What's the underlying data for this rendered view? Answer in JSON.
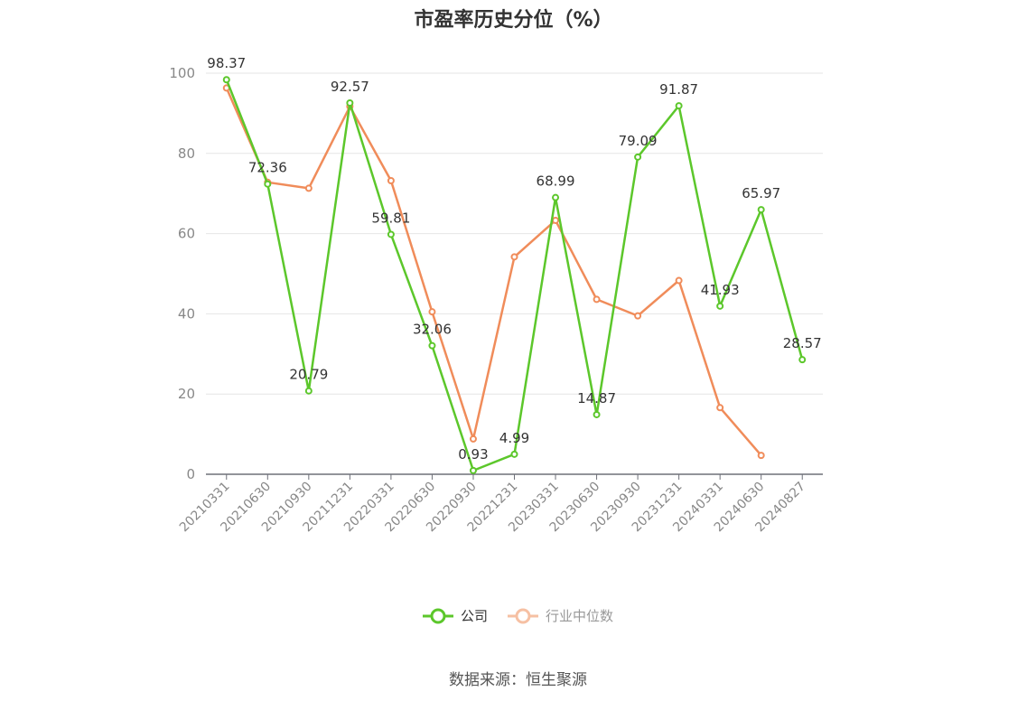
{
  "chart_data": {
    "type": "line",
    "title": "市盈率历史分位（%）",
    "categories": [
      "20210331",
      "20210630",
      "20210930",
      "20211231",
      "20220331",
      "20220630",
      "20220930",
      "20221231",
      "20230331",
      "20230630",
      "20230930",
      "20231231",
      "20240331",
      "20240630",
      "20240827"
    ],
    "series": [
      {
        "name": "公司",
        "color": "#5cc72b",
        "values": [
          98.37,
          72.36,
          20.79,
          92.57,
          59.81,
          32.06,
          0.93,
          4.99,
          68.99,
          14.87,
          79.09,
          91.87,
          41.93,
          65.97,
          28.57
        ],
        "labels": [
          "98.37",
          "72.36",
          "20.79",
          "92.57",
          "59.81",
          "32.06",
          "0.93",
          "4.99",
          "68.99",
          "14.87",
          "79.09",
          "91.87",
          "41.93",
          "65.97",
          "28.57"
        ]
      },
      {
        "name": "行业中位数",
        "color": "#f08c5a",
        "values": [
          96.3,
          72.8,
          71.3,
          91.7,
          73.2,
          40.5,
          8.8,
          54.2,
          63.3,
          43.6,
          39.5,
          48.3,
          16.6,
          4.7,
          null
        ]
      }
    ],
    "ylim": [
      0,
      100
    ],
    "yticks": [
      "0",
      "20",
      "40",
      "60",
      "80",
      "100"
    ],
    "grid": true,
    "legend_position": "bottom-center"
  },
  "legend": {
    "company": "公司",
    "industry": "行业中位数"
  },
  "source": "数据来源：恒生聚源"
}
